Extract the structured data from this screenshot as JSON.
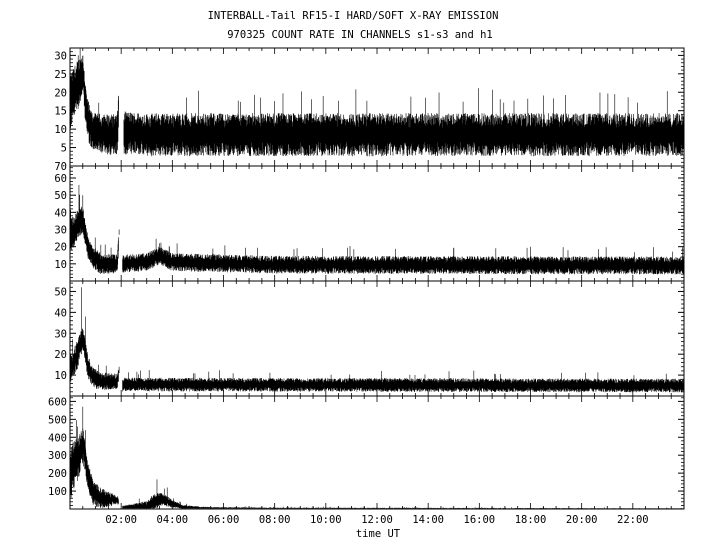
{
  "chart_data": {
    "type": "line",
    "title": "INTERBALL-Tail RF15-I HARD/SOFT X-RAY EMISSION",
    "subtitle": "970325  COUNT RATE IN CHANNELS s1-s3 and h1",
    "xlabel": "time UT",
    "xlim_hours": [
      0,
      24
    ],
    "x_ticks": [
      {
        "hours": 2,
        "label": "02:00"
      },
      {
        "hours": 4,
        "label": "04:00"
      },
      {
        "hours": 6,
        "label": "06:00"
      },
      {
        "hours": 8,
        "label": "08:00"
      },
      {
        "hours": 10,
        "label": "10:00"
      },
      {
        "hours": 12,
        "label": "12:00"
      },
      {
        "hours": 14,
        "label": "14:00"
      },
      {
        "hours": 16,
        "label": "16:00"
      },
      {
        "hours": 18,
        "label": "18:00"
      },
      {
        "hours": 20,
        "label": "20:00"
      },
      {
        "hours": 22,
        "label": "22:00"
      }
    ],
    "panels": [
      {
        "ylim": [
          0,
          32
        ],
        "yticks": [
          5,
          10,
          15,
          20,
          25,
          30
        ],
        "ytick_labels": [
          "5",
          "10",
          "15",
          "20",
          "25",
          "30"
        ],
        "gaps": [
          [
            1.9,
            2.1
          ]
        ],
        "profile": [
          [
            0,
            17
          ],
          [
            0.3,
            22
          ],
          [
            0.5,
            25
          ],
          [
            0.65,
            14
          ],
          [
            0.8,
            10
          ],
          [
            1.0,
            9
          ],
          [
            1.5,
            8.5
          ],
          [
            1.85,
            8.5
          ],
          [
            1.92,
            18
          ],
          [
            2.1,
            9
          ],
          [
            3,
            8.5
          ],
          [
            12,
            8.5
          ],
          [
            24,
            8.5
          ]
        ],
        "noise": [
          [
            0,
            6
          ],
          [
            0.8,
            4
          ],
          [
            2.1,
            4.5
          ],
          [
            24,
            4.5
          ]
        ],
        "spikes": [
          [
            0.32,
            30
          ],
          [
            0.45,
            28
          ],
          [
            0.55,
            24
          ],
          [
            1.9,
            19
          ]
        ]
      },
      {
        "ylim": [
          0,
          67
        ],
        "yticks": [
          10,
          20,
          30,
          40,
          50,
          60
        ],
        "ytick_labels": [
          "10",
          "20",
          "30",
          "40",
          "50",
          "60"
        ],
        "ytop_label": "70",
        "gaps": [
          [
            1.9,
            2.05
          ]
        ],
        "profile": [
          [
            0,
            25
          ],
          [
            0.3,
            33
          ],
          [
            0.5,
            36
          ],
          [
            0.7,
            20
          ],
          [
            0.9,
            14
          ],
          [
            1.2,
            10
          ],
          [
            1.85,
            10
          ],
          [
            1.92,
            27
          ],
          [
            2.05,
            10
          ],
          [
            3,
            11
          ],
          [
            3.5,
            15
          ],
          [
            4,
            11
          ],
          [
            8,
            9.5
          ],
          [
            24,
            9
          ]
        ],
        "noise": [
          [
            0,
            8
          ],
          [
            0.8,
            5
          ],
          [
            2.1,
            4
          ],
          [
            24,
            4
          ]
        ],
        "spikes": [
          [
            0.35,
            56
          ],
          [
            0.5,
            50
          ],
          [
            1.92,
            30
          ],
          [
            3.5,
            22
          ]
        ]
      },
      {
        "ylim": [
          0,
          55
        ],
        "yticks": [
          10,
          20,
          30,
          40,
          50
        ],
        "ytick_labels": [
          "10",
          "20",
          "30",
          "40",
          "50"
        ],
        "gaps": [
          [
            1.9,
            2.05
          ]
        ],
        "profile": [
          [
            0,
            12
          ],
          [
            0.3,
            20
          ],
          [
            0.5,
            28
          ],
          [
            0.7,
            14
          ],
          [
            0.9,
            9
          ],
          [
            1.2,
            7
          ],
          [
            1.85,
            7
          ],
          [
            1.92,
            11
          ],
          [
            2.05,
            5.5
          ],
          [
            24,
            5
          ]
        ],
        "noise": [
          [
            0,
            6
          ],
          [
            0.8,
            4
          ],
          [
            2.1,
            2.5
          ],
          [
            24,
            2.5
          ]
        ],
        "spikes": [
          [
            0.45,
            52
          ],
          [
            0.6,
            38
          ],
          [
            1.92,
            14
          ]
        ]
      },
      {
        "ylim": [
          0,
          630
        ],
        "yticks": [
          100,
          200,
          300,
          400,
          500,
          600
        ],
        "ytick_labels": [
          "100",
          "200",
          "300",
          "400",
          "500",
          "600"
        ],
        "gaps": [
          [
            1.9,
            2.05
          ]
        ],
        "profile": [
          [
            0,
            200
          ],
          [
            0.3,
            280
          ],
          [
            0.5,
            360
          ],
          [
            0.7,
            180
          ],
          [
            0.9,
            90
          ],
          [
            1.2,
            60
          ],
          [
            1.85,
            50
          ],
          [
            2.05,
            8
          ],
          [
            3,
            8
          ],
          [
            3.3,
            40
          ],
          [
            3.6,
            55
          ],
          [
            4,
            30
          ],
          [
            4.4,
            10
          ],
          [
            5,
            6
          ],
          [
            8,
            3
          ],
          [
            24,
            2
          ]
        ],
        "noise": [
          [
            0,
            120
          ],
          [
            0.8,
            60
          ],
          [
            1.5,
            35
          ],
          [
            2.05,
            8
          ],
          [
            3.3,
            35
          ],
          [
            4.3,
            10
          ],
          [
            5.5,
            4
          ],
          [
            24,
            2
          ]
        ],
        "spikes": [
          [
            0.3,
            460
          ],
          [
            0.5,
            570
          ],
          [
            0.6,
            440
          ],
          [
            3.4,
            165
          ],
          [
            3.8,
            120
          ]
        ]
      }
    ]
  }
}
